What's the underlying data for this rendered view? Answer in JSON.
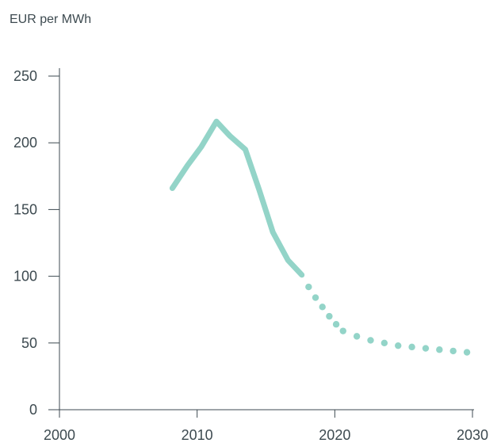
{
  "chart_data": {
    "type": "line",
    "ylabel": "EUR per MWh",
    "x_ticks": [
      "2000",
      "2010",
      "2020",
      "2030"
    ],
    "y_ticks": [
      "0",
      "50",
      "100",
      "150",
      "200",
      "250"
    ],
    "xlim": [
      2000,
      2030
    ],
    "ylim": [
      0,
      250
    ],
    "grid": false,
    "series": [
      {
        "style": "solid",
        "color": "#93d4c8",
        "x": [
          2008.2,
          2009.3,
          2010.3,
          2011.4,
          2012.4,
          2013.5,
          2014.5,
          2015.5,
          2016.6,
          2017.6
        ],
        "y": [
          166,
          183,
          197,
          216,
          205,
          195,
          165,
          133,
          112,
          101
        ]
      },
      {
        "style": "dotted",
        "color": "#93d4c8",
        "x": [
          2017.6,
          2018.1,
          2018.6,
          2019.1,
          2019.6,
          2020.1,
          2020.6,
          2021.6,
          2022.6,
          2023.6,
          2024.6,
          2025.6,
          2026.6,
          2027.6,
          2028.6,
          2029.6
        ],
        "y": [
          101,
          92,
          84,
          77,
          70,
          64,
          59,
          55,
          52,
          50,
          48,
          47,
          46,
          45,
          44,
          43
        ]
      }
    ]
  }
}
